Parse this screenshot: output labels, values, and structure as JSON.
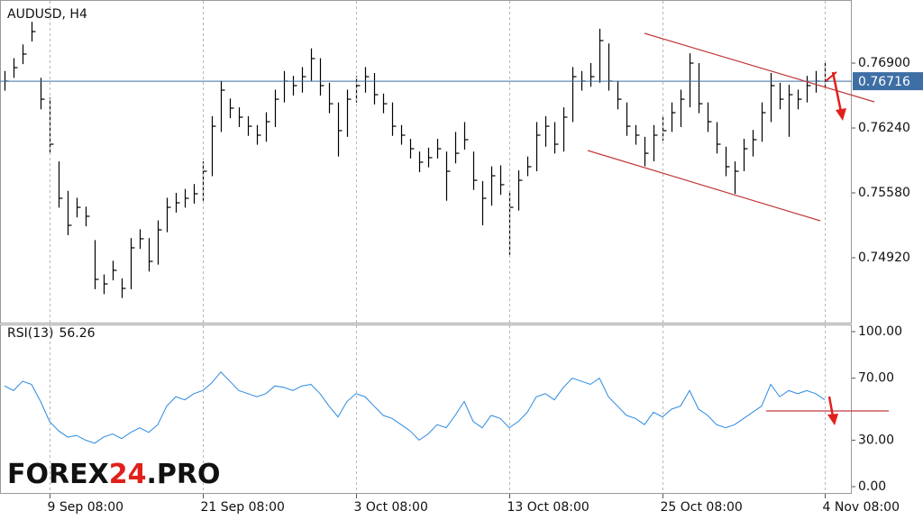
{
  "chart_data": [
    {
      "type": "ohlc",
      "title": "AUDUSD, H4",
      "color": "#000000",
      "categories": [
        null,
        null,
        null,
        null,
        null,
        "9 Sep 08:00",
        null,
        null,
        null,
        null,
        null,
        null,
        null,
        null,
        null,
        null,
        null,
        null,
        null,
        null,
        null,
        null,
        "21 Sep 08:00",
        null,
        null,
        null,
        null,
        null,
        null,
        null,
        null,
        null,
        null,
        null,
        null,
        null,
        null,
        null,
        null,
        "3 Oct 08:00",
        null,
        null,
        null,
        null,
        null,
        null,
        null,
        null,
        null,
        null,
        null,
        null,
        null,
        null,
        null,
        null,
        "13 Oct 08:00",
        null,
        null,
        null,
        null,
        null,
        null,
        null,
        null,
        null,
        null,
        null,
        null,
        null,
        null,
        null,
        null,
        "25 Oct 08:00",
        null,
        null,
        null,
        null,
        null,
        null,
        null,
        null,
        null,
        null,
        null,
        null,
        null,
        null,
        null,
        null,
        null,
        "4 Nov 08:00"
      ],
      "high": [
        0.7682,
        0.7695,
        0.7709,
        0.7732,
        0.7675,
        0.7655,
        0.759,
        0.756,
        0.7553,
        0.7544,
        0.751,
        0.7475,
        0.7489,
        0.7471,
        0.7512,
        0.7521,
        0.7512,
        0.753,
        0.7553,
        0.7558,
        0.7562,
        0.7567,
        0.759,
        0.7636,
        0.7672,
        0.7654,
        0.7645,
        0.7636,
        0.7627,
        0.764,
        0.7663,
        0.7682,
        0.7677,
        0.7686,
        0.7705,
        0.7695,
        0.767,
        0.765,
        0.7663,
        0.7677,
        0.7686,
        0.768,
        0.7659,
        0.765,
        0.7627,
        0.7613,
        0.76,
        0.7604,
        0.7613,
        0.76,
        0.762,
        0.763,
        0.76,
        0.757,
        0.7585,
        0.7586,
        0.756,
        0.7581,
        0.7595,
        0.763,
        0.7636,
        0.763,
        0.7645,
        0.7686,
        0.7682,
        0.769,
        0.7725,
        0.771,
        0.7672,
        0.765,
        0.7627,
        0.7615,
        0.7627,
        0.7635,
        0.765,
        0.7663,
        0.77,
        0.769,
        0.765,
        0.763,
        0.7605,
        0.759,
        0.7613,
        0.7622,
        0.765,
        0.768,
        0.767,
        0.7668,
        0.7663,
        0.7677,
        0.7682,
        0.769
      ],
      "low": [
        0.7662,
        0.7675,
        0.7689,
        0.7712,
        0.7643,
        0.7598,
        0.7543,
        0.7515,
        0.7533,
        0.7524,
        0.746,
        0.7455,
        0.7469,
        0.7451,
        0.746,
        0.7501,
        0.7478,
        0.7485,
        0.7518,
        0.7538,
        0.7543,
        0.7547,
        0.755,
        0.7575,
        0.762,
        0.7634,
        0.7625,
        0.7616,
        0.7607,
        0.761,
        0.7625,
        0.765,
        0.7657,
        0.766,
        0.7672,
        0.7657,
        0.7639,
        0.7595,
        0.7615,
        0.765,
        0.766,
        0.7648,
        0.7639,
        0.7616,
        0.7607,
        0.7593,
        0.7579,
        0.7584,
        0.7593,
        0.755,
        0.7588,
        0.7602,
        0.7561,
        0.7525,
        0.7545,
        0.7556,
        0.7495,
        0.754,
        0.7575,
        0.758,
        0.7605,
        0.7598,
        0.76,
        0.763,
        0.7662,
        0.7666,
        0.767,
        0.7662,
        0.7643,
        0.7616,
        0.7607,
        0.7585,
        0.759,
        0.7611,
        0.762,
        0.7625,
        0.7645,
        0.7639,
        0.762,
        0.7598,
        0.7575,
        0.7557,
        0.758,
        0.7595,
        0.761,
        0.763,
        0.7643,
        0.7615,
        0.7643,
        0.765,
        0.766,
        0.7665
      ],
      "close": [
        0.76717,
        0.76854,
        0.76992,
        0.77221,
        0.76533,
        0.76075,
        0.75525,
        0.7525,
        0.75433,
        0.75342,
        0.747,
        0.74654,
        0.74792,
        0.74608,
        0.75021,
        0.75113,
        0.74883,
        0.75204,
        0.75433,
        0.75479,
        0.75525,
        0.75571,
        0.758,
        0.76258,
        0.76625,
        0.76442,
        0.7635,
        0.76258,
        0.76167,
        0.76304,
        0.76533,
        0.76717,
        0.76671,
        0.76762,
        0.76946,
        0.76671,
        0.76487,
        0.76213,
        0.76533,
        0.76671,
        0.76762,
        0.76579,
        0.76487,
        0.76258,
        0.76167,
        0.76029,
        0.75892,
        0.75938,
        0.76029,
        0.758,
        0.75983,
        0.76121,
        0.75708,
        0.75525,
        0.75754,
        0.75663,
        0.75433,
        0.75708,
        0.75846,
        0.76167,
        0.76258,
        0.76075,
        0.7635,
        0.76762,
        0.76717,
        0.76762,
        0.77129,
        0.76717,
        0.76533,
        0.76258,
        0.76167,
        0.75983,
        0.76167,
        0.76213,
        0.76396,
        0.76533,
        0.769,
        0.76487,
        0.76304,
        0.76075,
        0.75846,
        0.758,
        0.76029,
        0.76121,
        0.76396,
        0.76671,
        0.76533,
        0.76579,
        0.76533,
        0.76671,
        0.76717,
        0.76716
      ],
      "last_price": 0.76716,
      "last_price_color": "#3d6fa5",
      "ylim": [
        0.7426,
        0.77542
      ],
      "yticks": [
        {
          "value": 0.769,
          "label": "0.76900"
        },
        {
          "value": 0.7624,
          "label": "0.76240"
        },
        {
          "value": 0.7558,
          "label": "0.75580"
        },
        {
          "value": 0.7492,
          "label": "0.74920"
        }
      ]
    },
    {
      "type": "line",
      "title": "RSI(13)",
      "current": 56.26,
      "color": "#2b8ae0",
      "values": [
        65,
        62,
        68,
        66,
        55,
        42,
        36,
        32,
        33,
        30,
        28,
        32,
        34,
        31,
        35,
        38,
        35,
        40,
        52,
        58,
        56,
        60,
        62,
        67,
        74,
        68,
        62,
        60,
        58,
        60,
        65,
        64,
        62,
        65,
        66,
        60,
        52,
        45,
        55,
        60,
        58,
        52,
        46,
        44,
        40,
        36,
        30,
        34,
        40,
        38,
        46,
        55,
        42,
        38,
        46,
        44,
        38,
        42,
        48,
        58,
        60,
        56,
        64,
        70,
        68,
        66,
        70,
        58,
        52,
        46,
        44,
        40,
        48,
        45,
        50,
        52,
        62,
        50,
        46,
        40,
        38,
        40,
        44,
        48,
        52,
        66,
        58,
        62,
        60,
        62,
        60,
        56
      ],
      "ylim": [
        0,
        100
      ],
      "yticks": [
        {
          "value": 100,
          "label": "100.00"
        },
        {
          "value": 70,
          "label": "70.00"
        },
        {
          "value": 30,
          "label": "30.00"
        },
        {
          "value": 0,
          "label": "0.00"
        }
      ]
    }
  ],
  "watermark": {
    "part1": "FOREX",
    "part2": "24",
    "part3": ".PRO"
  }
}
